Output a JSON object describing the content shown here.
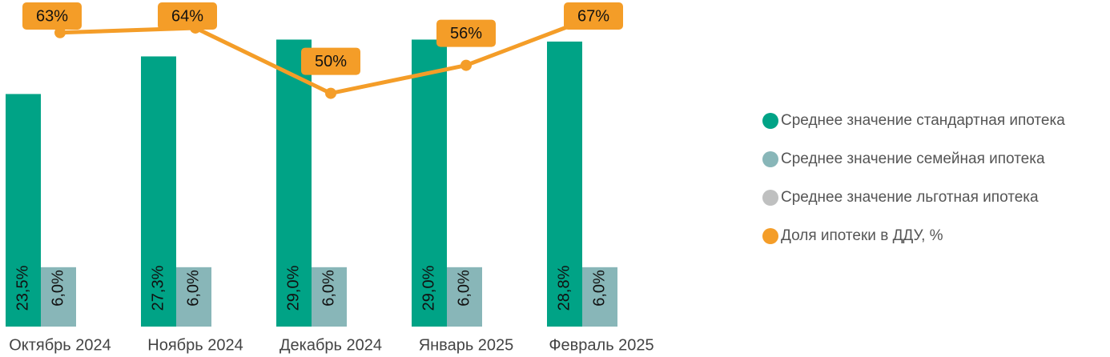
{
  "chart_data": {
    "type": "bar_line",
    "categories": [
      "Октябрь 2024",
      "Ноябрь 2024",
      "Декабрь 2024",
      "Январь 2025",
      "Февраль 2025"
    ],
    "series": [
      {
        "name": "Среднее значение стандартная ипотека",
        "color": "#00a386",
        "type": "bar",
        "values": [
          23.5,
          27.3,
          29.0,
          29.0,
          28.8
        ],
        "value_labels": [
          "23,5%",
          "27,3%",
          "29,0%",
          "29,0%",
          "28,8%"
        ]
      },
      {
        "name": "Среднее значение семейная ипотека",
        "color": "#88b6b8",
        "type": "bar",
        "values": [
          6.0,
          6.0,
          6.0,
          6.0,
          6.0
        ],
        "value_labels": [
          "6,0%",
          "6,0%",
          "6,0%",
          "6,0%",
          "6,0%"
        ]
      },
      {
        "name": "Среднее значение льготная ипотека",
        "color": "#bfc0c0",
        "type": "bar",
        "values": [
          null,
          null,
          null,
          null,
          null
        ]
      },
      {
        "name": "Доля ипотеки в ДДУ, %",
        "color": "#f49d28",
        "type": "line",
        "axis": "y2",
        "values": [
          63,
          64,
          50,
          56,
          67
        ],
        "value_labels": [
          "63%",
          "64%",
          "50%",
          "56%",
          "67%"
        ]
      }
    ],
    "ylim": [
      0,
      33
    ],
    "y2lim": [
      0,
      70
    ],
    "legend": "right"
  }
}
